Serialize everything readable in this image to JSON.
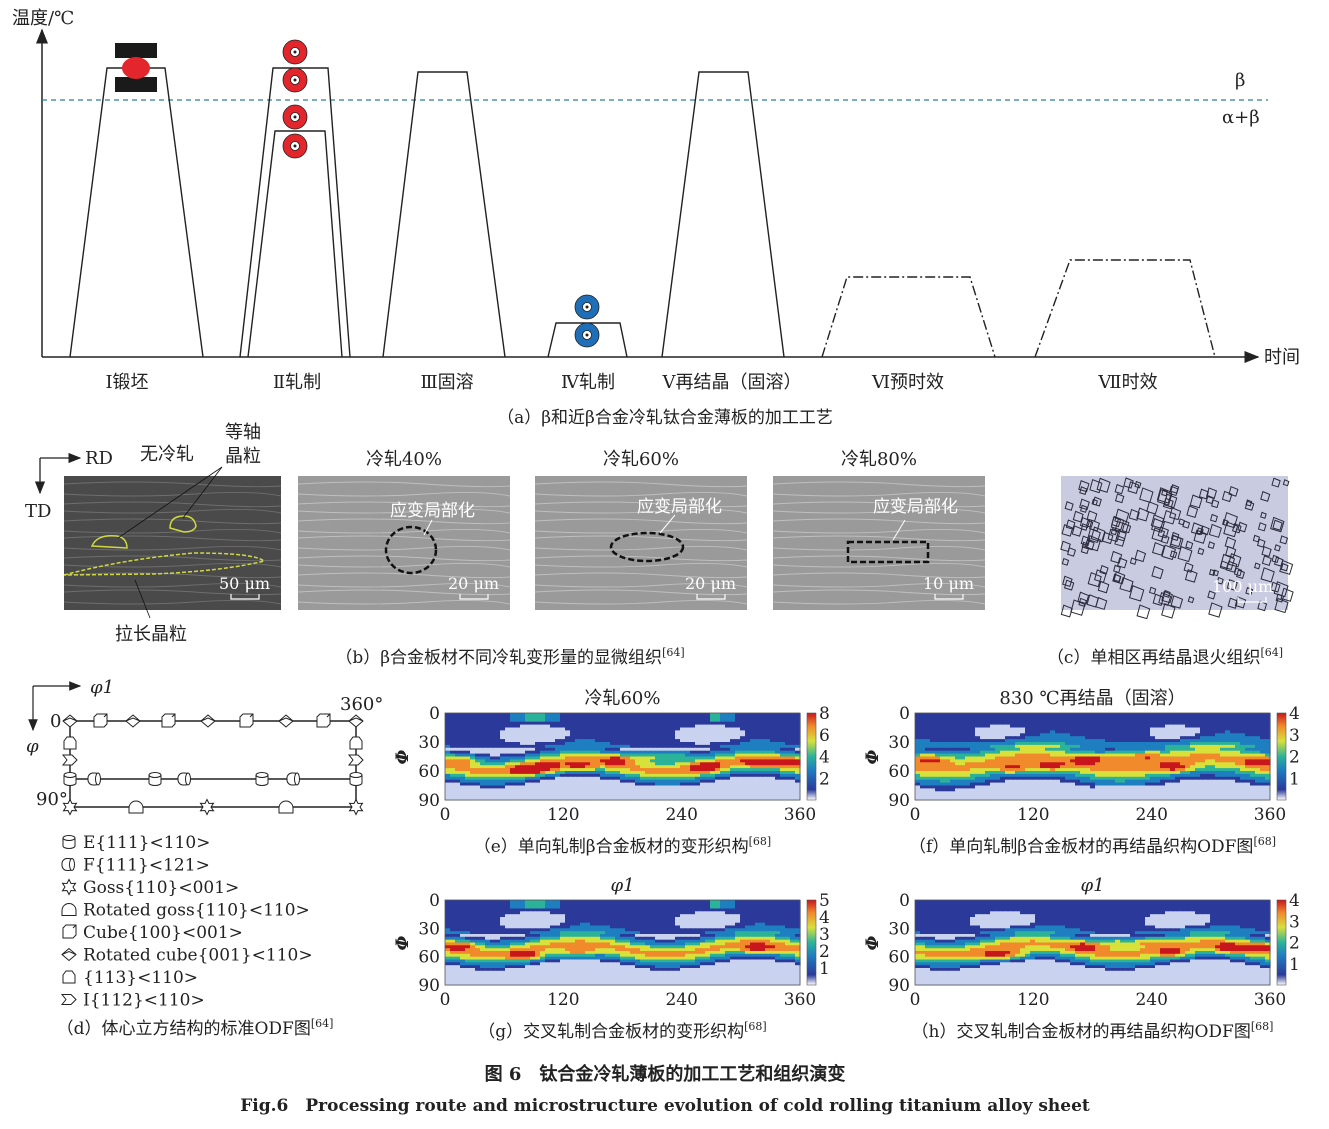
{
  "panel_a": {
    "y_axis_label": "温度/℃",
    "x_axis_label": "时间",
    "beta_label": "β",
    "alpha_beta_label": "α+β",
    "steps": [
      "Ⅰ锻坯",
      "Ⅱ轧制",
      "Ⅲ固溶",
      "Ⅳ轧制",
      "Ⅴ再结晶（固溶）",
      "Ⅵ预时效",
      "Ⅶ时效"
    ],
    "caption": "（a）β和近β合金冷轧钛合金薄板的加工工艺",
    "colors": {
      "rolls_hot": "#e3262b",
      "rolls_cold": "#1f6fb8",
      "beta_transus": "#2a7f9e",
      "forging_die": "#1a1a1a"
    }
  },
  "panel_b": {
    "rd_label": "RD",
    "td_label": "TD",
    "micrographs": [
      {
        "title": "无冷轧",
        "scale": "50 μm"
      },
      {
        "title": "冷轧40%",
        "scale": "20 μm",
        "annotation": "应变局部化"
      },
      {
        "title": "冷轧60%",
        "scale": "20 μm",
        "annotation": "应变局部化"
      },
      {
        "title": "冷轧80%",
        "scale": "10 μm",
        "annotation": "应变局部化"
      }
    ],
    "equiaxed_label_1": "等轴",
    "equiaxed_label_2": "晶粒",
    "elongated_label": "拉长晶粒",
    "caption": "（b）β合金板材不同冷轧变形量的显微组织",
    "caption_ref": "[64]"
  },
  "panel_c": {
    "scale": "100 μm",
    "caption": "（c）单相区再结晶退火组织",
    "caption_ref": "[64]"
  },
  "panel_d": {
    "phi1_label": "φ1",
    "phi_label": "φ",
    "zero_label": "0",
    "deg360_label": "360°",
    "deg90_label": "90°",
    "legend": [
      {
        "icon": "cylinder-icon",
        "label": "E{111}<110>"
      },
      {
        "icon": "cylinder-side-icon",
        "label": "F{111}<121>"
      },
      {
        "icon": "star-icon",
        "label": "Goss{110}<001>"
      },
      {
        "icon": "arch-icon",
        "label": "Rotated goss{110}<110>"
      },
      {
        "icon": "cube-icon",
        "label": "Cube{100}<001>"
      },
      {
        "icon": "rotated-cube-icon",
        "label": "Rotated cube{001}<110>"
      },
      {
        "icon": "pentagon-icon",
        "label": "{113}<110>"
      },
      {
        "icon": "chevron-icon",
        "label": "I{112}<110>"
      }
    ],
    "caption": "（d）体心立方结构的标准ODF图",
    "caption_ref": "[64]"
  },
  "odf": {
    "x_ticks": [
      "0",
      "120",
      "240",
      "360"
    ],
    "y_ticks": [
      "0",
      "30",
      "60",
      "90"
    ],
    "y_label": "Φ",
    "phi1_label": "φ1",
    "panels": [
      {
        "id": "e",
        "title": "冷轧60%",
        "colorbar": [
          "8",
          "6",
          "4",
          "2"
        ],
        "max": 8,
        "caption": "（e）单向轧制β合金板材的变形织构",
        "caption_ref": "[68]"
      },
      {
        "id": "f",
        "title": "830 ℃再结晶（固溶）",
        "colorbar": [
          "4",
          "3",
          "2",
          "1"
        ],
        "max": 4,
        "caption": "（f）单向轧制β合金板材的再结晶织构ODF图",
        "caption_ref": "[68]"
      },
      {
        "id": "g",
        "title": "φ1",
        "colorbar": [
          "5",
          "4",
          "3",
          "2",
          "1"
        ],
        "max": 5,
        "caption": "（g）交叉轧制合金板材的变形织构",
        "caption_ref": "[68]"
      },
      {
        "id": "h",
        "title": "φ1",
        "colorbar": [
          "4",
          "3",
          "2",
          "1"
        ],
        "max": 4,
        "caption": "（h）交叉轧制合金板材的再结晶织构ODF图",
        "caption_ref": "[68]"
      }
    ]
  },
  "figure": {
    "caption_cn": "图 6　钛合金冷轧薄板的加工工艺和组织演变",
    "caption_en": "Fig.6　Processing route and microstructure evolution of cold rolling titanium alloy sheet"
  }
}
